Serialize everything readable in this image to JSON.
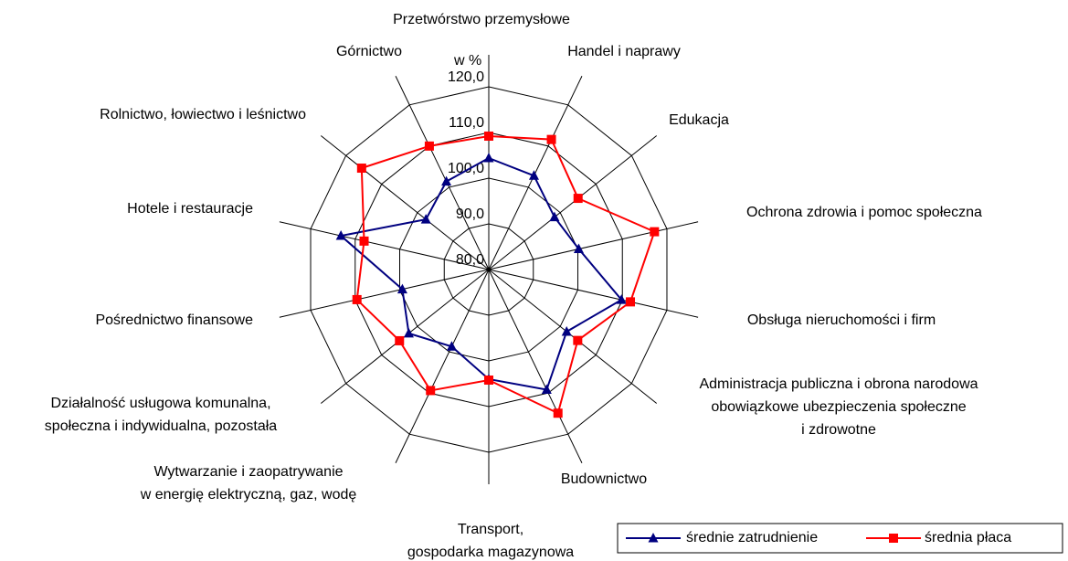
{
  "chart_data": {
    "type": "radar",
    "axis_label": "w %",
    "categories": [
      "Przetwórstwo przemysłowe",
      "Handel i naprawy",
      "Edukacja",
      "Ochrona zdrowia i pomoc społeczna",
      "Obsługa nieruchomości i firm",
      "Administracja publiczna i obrona narodowa\nobowiązkowe ubezpieczenia społeczne\ni zdrowotne",
      "Budownictwo",
      "Transport,\ngospodarka magazynowa\ni łączność",
      "Wytwarzanie i zaopatrywanie\nw energię elektryczną, gaz, wodę",
      "Działalność usługowa komunalna,\nspołeczna i indywidualna, pozostała",
      "Pośrednictwo finansowe",
      "Hotele i restauracje",
      "Rolnictwo, łowiectwo i leśnictwo",
      "Górnictwo"
    ],
    "series": [
      {
        "name": "średnie zatrudnienie",
        "color": "#000080",
        "marker": "triangle",
        "values": [
          104.4,
          102.8,
          98.4,
          100.2,
          109.8,
          101.8,
          109.2,
          104.0,
          98.7,
          102.4,
          99.4,
          113.2,
          97.6,
          101.4
        ]
      },
      {
        "name": "średnia płaca",
        "color": "#ff0000",
        "marker": "square",
        "values": [
          109.2,
          111.6,
          105.0,
          117.2,
          111.8,
          104.9,
          114.9,
          104.2,
          109.4,
          105.0,
          109.6,
          108.0,
          115.6,
          110.0
        ]
      }
    ],
    "ylim": [
      80,
      120
    ],
    "yticks": [
      {
        "value": 80,
        "label": "80,0"
      },
      {
        "value": 90,
        "label": "90,0"
      },
      {
        "value": 100,
        "label": "100,0"
      },
      {
        "value": 110,
        "label": "110,0"
      },
      {
        "value": 120,
        "label": "120,0"
      }
    ],
    "grid": true
  }
}
